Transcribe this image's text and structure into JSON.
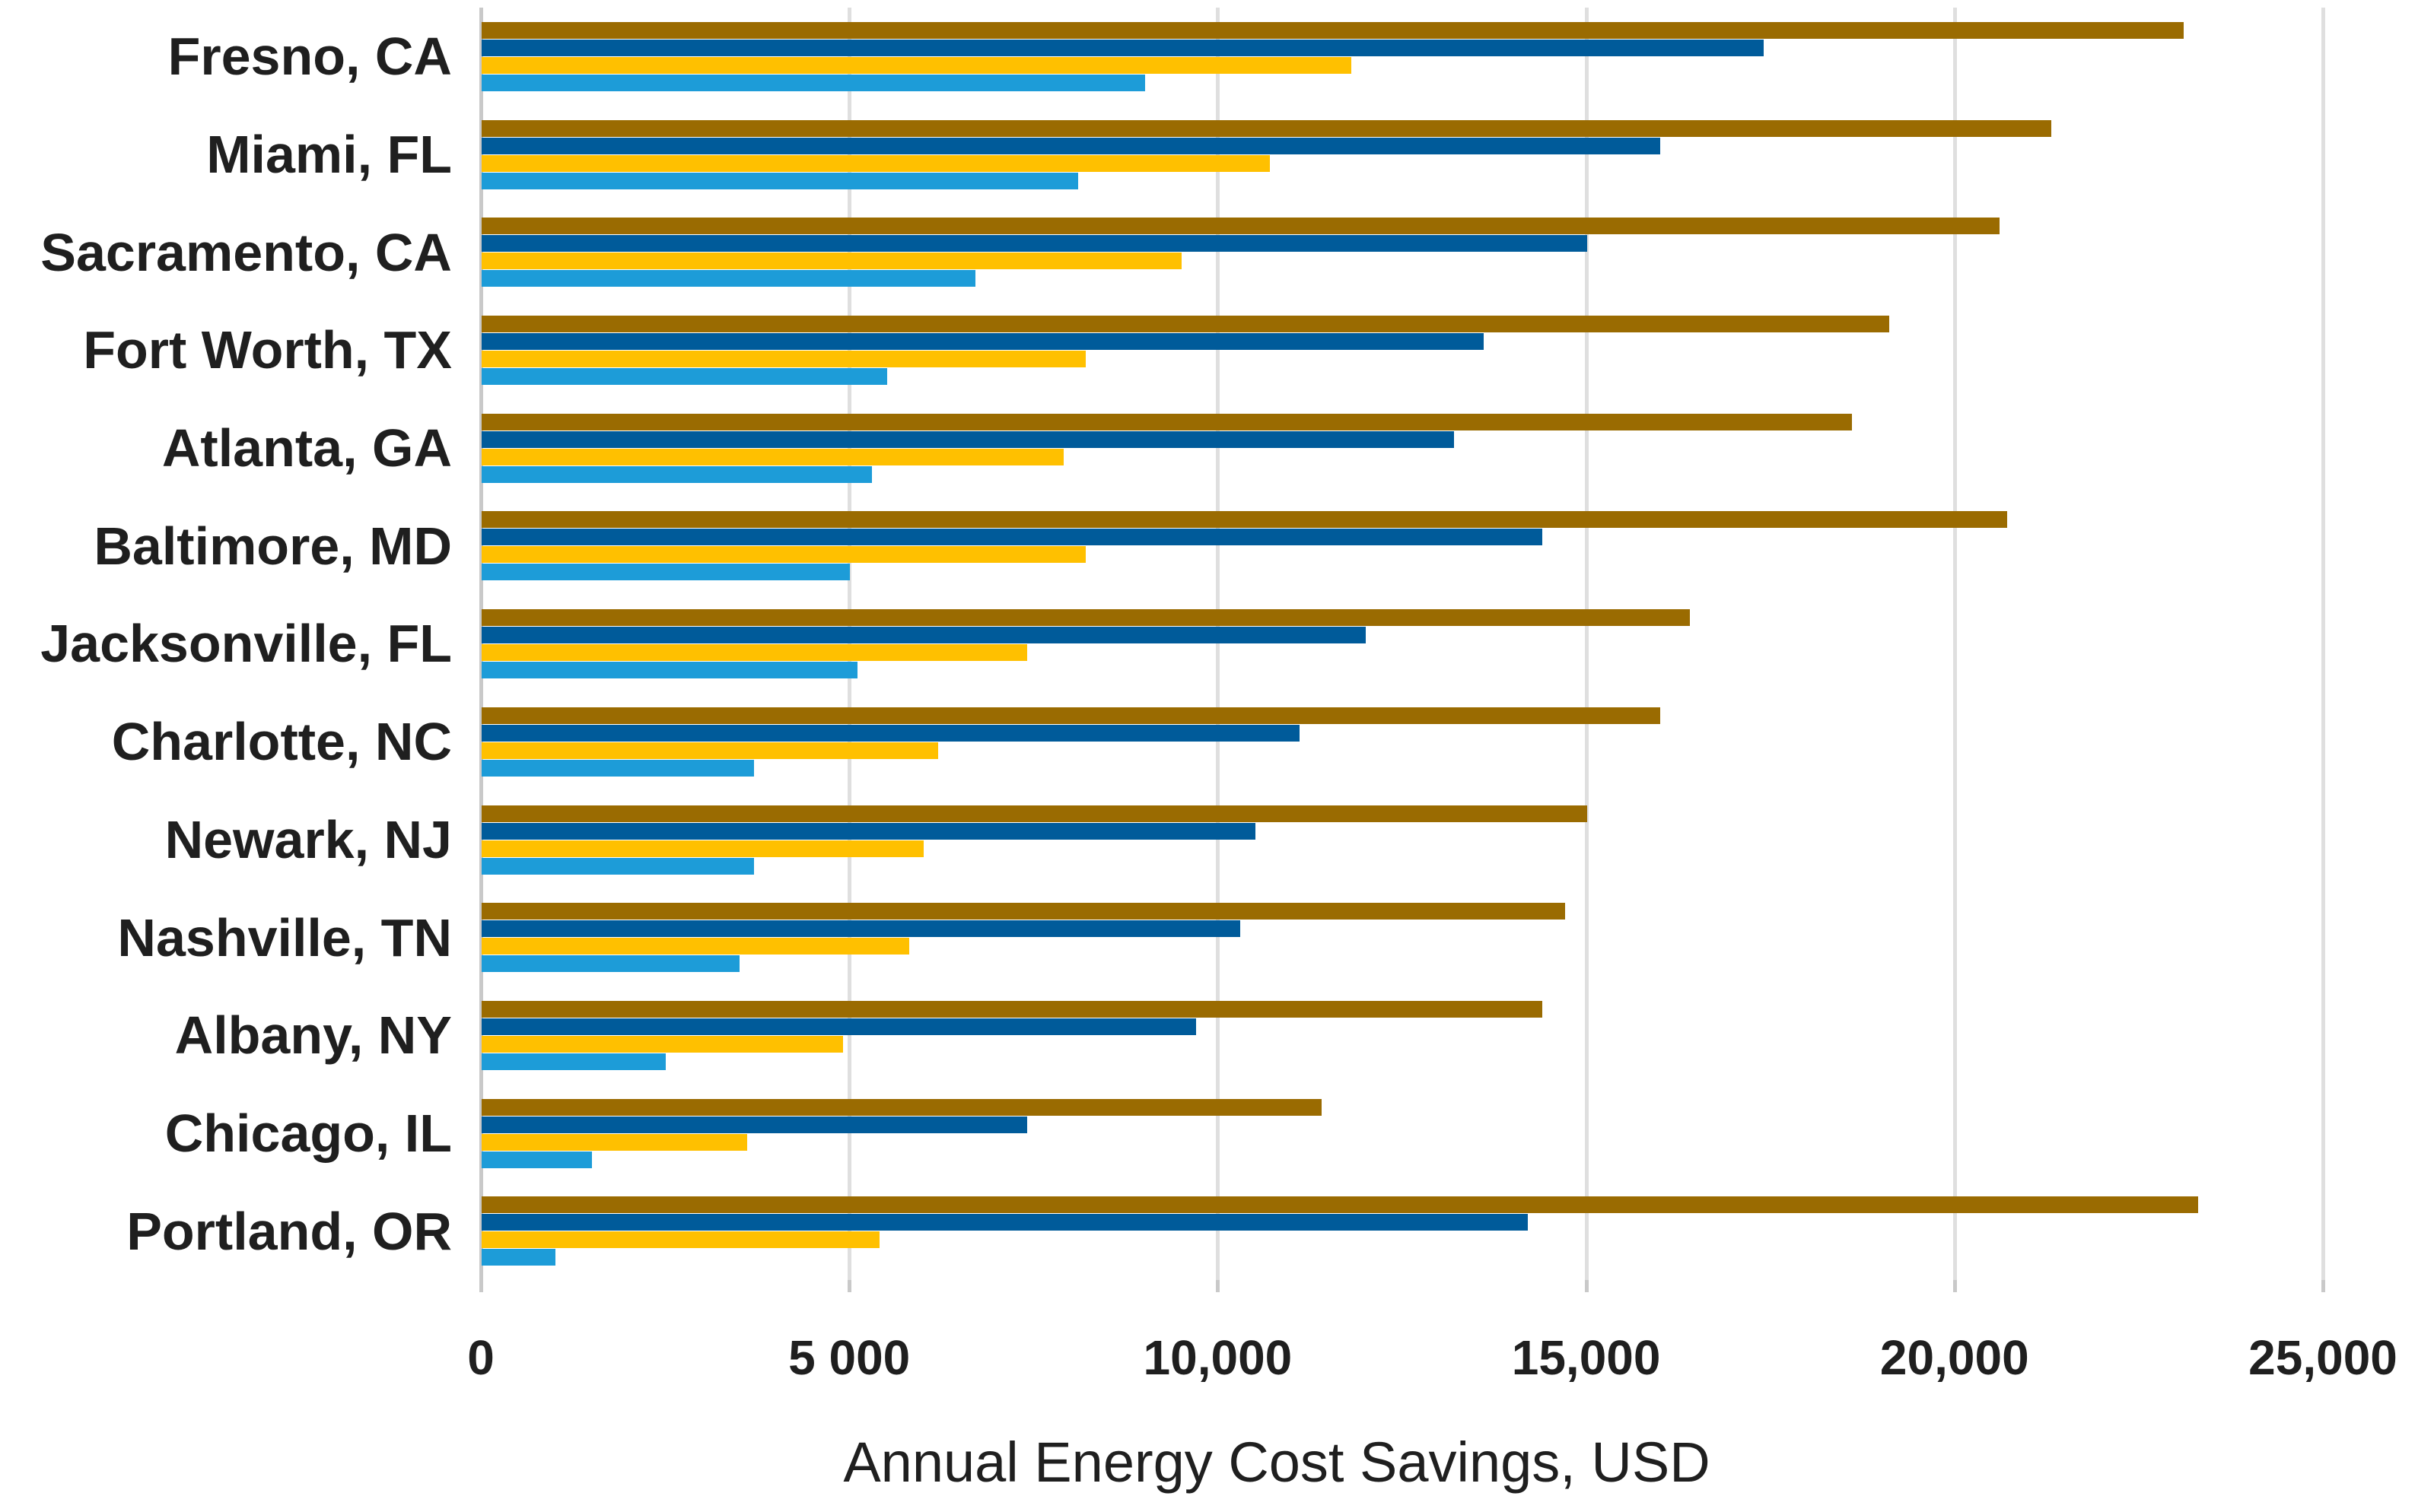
{
  "chart_data": {
    "type": "bar",
    "orientation": "horizontal",
    "title": "",
    "xlabel": "Annual Energy Cost Savings, USD",
    "ylabel": "",
    "xlim": [
      0,
      25000
    ],
    "grid": true,
    "legend_position": "none",
    "categories": [
      "Fresno, CA",
      "Miami, FL",
      "Sacramento, CA",
      "Fort Worth, TX",
      "Atlanta, GA",
      "Baltimore, MD",
      "Jacksonville, FL",
      "Charlotte, NC",
      "Newark, NJ",
      "Nashville, TN",
      "Albany, NY",
      "Chicago, IL",
      "Portland, OR"
    ],
    "x_ticks": [
      {
        "value": 0,
        "label": "0"
      },
      {
        "value": 5000,
        "label": "5 000"
      },
      {
        "value": 10000,
        "label": "10,000"
      },
      {
        "value": 15000,
        "label": "15,000"
      },
      {
        "value": 20000,
        "label": "20,000"
      },
      {
        "value": 25000,
        "label": "25,000"
      }
    ],
    "series": [
      {
        "name": "series-1-dark-gold",
        "color": "#9A6B01",
        "values": [
          23100,
          21300,
          20600,
          19100,
          18600,
          20700,
          16400,
          16000,
          15000,
          14700,
          14400,
          11400,
          23300
        ]
      },
      {
        "name": "series-2-dark-blue",
        "color": "#005B9A",
        "values": [
          17400,
          16000,
          15000,
          13600,
          13200,
          14400,
          12000,
          11100,
          10500,
          10300,
          9700,
          7400,
          14200
        ]
      },
      {
        "name": "series-3-gold",
        "color": "#FFC000",
        "values": [
          11800,
          10700,
          9500,
          8200,
          7900,
          8200,
          7400,
          6200,
          6000,
          5800,
          4900,
          3600,
          5400
        ]
      },
      {
        "name": "series-4-light-blue",
        "color": "#1D9CD8",
        "values": [
          9000,
          8100,
          6700,
          5500,
          5300,
          5000,
          5100,
          3700,
          3700,
          3500,
          2500,
          1500,
          1000
        ]
      }
    ],
    "axis_colors": {
      "gridline": "#DFDFDF",
      "axis_line": "#C9C9C9",
      "text": "#1F1F1F"
    }
  }
}
